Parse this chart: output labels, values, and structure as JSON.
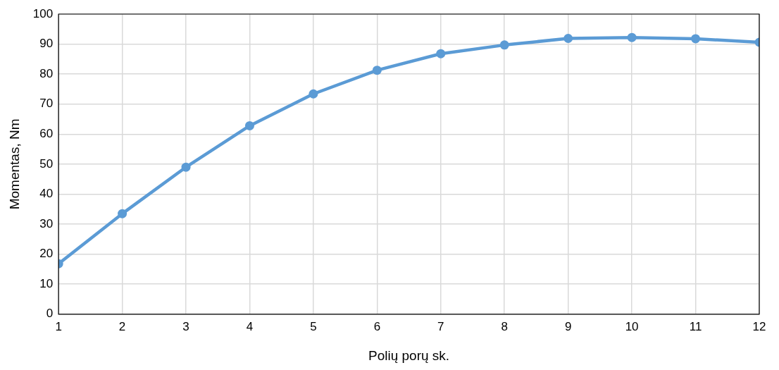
{
  "chart_data": {
    "type": "line",
    "xlabel": "Polių porų sk.",
    "ylabel": "Momentas, Nm",
    "x": [
      1,
      2,
      3,
      4,
      5,
      6,
      7,
      8,
      9,
      10,
      11,
      12
    ],
    "series": [
      {
        "color": "#5b9bd5",
        "values": [
          16.8,
          33.5,
          49,
          62.8,
          73.4,
          81.3,
          86.8,
          89.7,
          91.9,
          92.2,
          91.8,
          90.6
        ]
      }
    ],
    "xlim": [
      1,
      12
    ],
    "xticks": [
      1,
      2,
      3,
      4,
      5,
      6,
      7,
      8,
      9,
      10,
      11,
      12
    ],
    "ylim": [
      0,
      100
    ],
    "yticks": [
      0,
      10,
      20,
      30,
      40,
      50,
      60,
      70,
      80,
      90,
      100
    ],
    "grid": true,
    "marker": "circle",
    "line_style": "solid"
  }
}
